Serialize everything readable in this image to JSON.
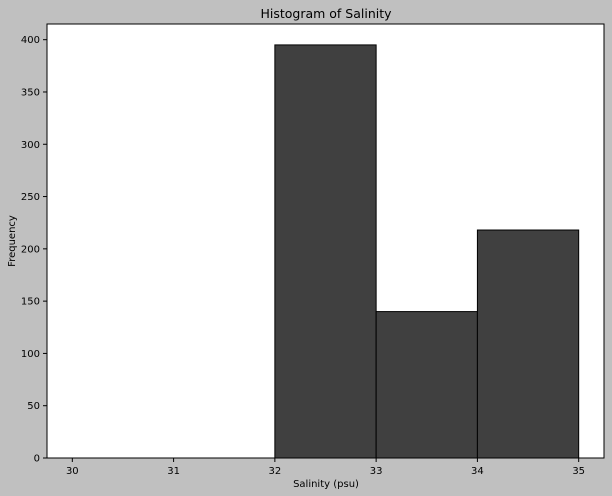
{
  "chart_data": {
    "type": "bar",
    "title": "Histogram of Salinity",
    "xlabel": "Salinity (psu)",
    "ylabel": "Frequency",
    "bins": [
      {
        "x0": 32,
        "x1": 33,
        "count": 395
      },
      {
        "x0": 33,
        "x1": 34,
        "count": 140
      },
      {
        "x0": 34,
        "x1": 35,
        "count": 218
      }
    ],
    "xlim": [
      29.75,
      35.25
    ],
    "ylim": [
      0,
      415
    ],
    "xticks": [
      30,
      31,
      32,
      33,
      34,
      35
    ],
    "yticks": [
      0,
      50,
      100,
      150,
      200,
      250,
      300,
      350,
      400
    ],
    "grid": false,
    "legend": "none"
  },
  "colors": {
    "figure_background": "#c0c0c0",
    "plot_background": "#ffffff",
    "bar_fill": "#404040",
    "bar_edge": "#000000"
  }
}
